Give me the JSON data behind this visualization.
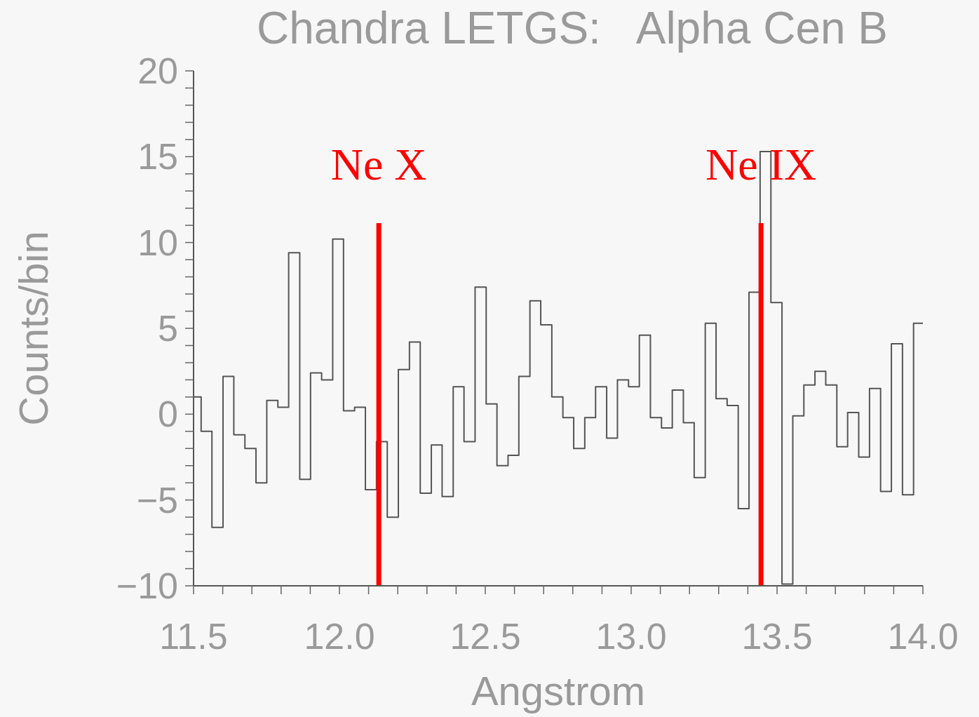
{
  "chart_data": {
    "type": "histogram",
    "title": "Chandra LETGS:   Alpha Cen B",
    "xlabel": "Angstrom",
    "ylabel": "Counts/bin",
    "color": "#555555",
    "bins": [
      11.5,
      11.526,
      11.563,
      11.601,
      11.638,
      11.676,
      11.714,
      11.751,
      11.789,
      11.826,
      11.864,
      11.901,
      11.939,
      11.977,
      12.014,
      12.052,
      12.089,
      12.127,
      12.164,
      12.202,
      12.24,
      12.277,
      12.315,
      12.352,
      12.39,
      12.427,
      12.465,
      12.503,
      12.54,
      12.578,
      12.615,
      12.653,
      12.69,
      12.728,
      12.766,
      12.803,
      12.841,
      12.878,
      12.916,
      12.953,
      12.991,
      13.028,
      13.066,
      13.104,
      13.141,
      13.179,
      13.216,
      13.254,
      13.291,
      13.329,
      13.367,
      13.404,
      13.442,
      13.479,
      13.517,
      13.554,
      13.592,
      13.63,
      13.667,
      13.705,
      13.742,
      13.78,
      13.817,
      13.855,
      13.892,
      13.93,
      13.968,
      14.0
    ],
    "values": [
      1.0,
      -1.0,
      -6.6,
      2.2,
      -1.2,
      -2.0,
      -4.0,
      0.8,
      0.4,
      9.4,
      -3.8,
      2.4,
      2.0,
      10.2,
      0.2,
      0.4,
      -4.4,
      -1.6,
      -6.0,
      2.6,
      4.2,
      -4.6,
      -1.8,
      -4.8,
      1.6,
      -1.6,
      7.4,
      0.6,
      -3.0,
      -2.4,
      2.2,
      6.6,
      5.2,
      1.0,
      -0.2,
      -2.0,
      -0.2,
      1.6,
      -1.4,
      2.0,
      1.6,
      4.6,
      -0.2,
      -0.8,
      1.4,
      -0.5,
      -3.7,
      5.3,
      0.9,
      0.5,
      -5.5,
      7.1,
      15.3,
      6.5,
      -9.9,
      -0.1,
      1.7,
      2.5,
      1.7,
      -1.9,
      0.1,
      -2.5,
      1.5,
      -4.5,
      4.1,
      -4.7,
      5.3
    ],
    "xlim": [
      11.5,
      14.0
    ],
    "xticks": [
      {
        "value": 11.5,
        "label": "11.5"
      },
      {
        "value": 11.6,
        "label": null
      },
      {
        "value": 11.7,
        "label": null
      },
      {
        "value": 11.8,
        "label": null
      },
      {
        "value": 11.9,
        "label": null
      },
      {
        "value": 12.0,
        "label": "12.0"
      },
      {
        "value": 12.1,
        "label": null
      },
      {
        "value": 12.2,
        "label": null
      },
      {
        "value": 12.3,
        "label": null
      },
      {
        "value": 12.4,
        "label": null
      },
      {
        "value": 12.5,
        "label": "12.5"
      },
      {
        "value": 12.6,
        "label": null
      },
      {
        "value": 12.7,
        "label": null
      },
      {
        "value": 12.8,
        "label": null
      },
      {
        "value": 12.9,
        "label": null
      },
      {
        "value": 13.0,
        "label": "13.0"
      },
      {
        "value": 13.1,
        "label": null
      },
      {
        "value": 13.2,
        "label": null
      },
      {
        "value": 13.3,
        "label": null
      },
      {
        "value": 13.4,
        "label": null
      },
      {
        "value": 13.5,
        "label": "13.5"
      },
      {
        "value": 13.6,
        "label": null
      },
      {
        "value": 13.7,
        "label": null
      },
      {
        "value": 13.8,
        "label": null
      },
      {
        "value": 13.9,
        "label": null
      },
      {
        "value": 14.0,
        "label": "14.0"
      }
    ],
    "ylim": [
      -10,
      20
    ],
    "yticks": [
      {
        "value": -10,
        "label": "−10"
      },
      {
        "value": -9,
        "label": null
      },
      {
        "value": -8,
        "label": null
      },
      {
        "value": -7,
        "label": null
      },
      {
        "value": -6,
        "label": null
      },
      {
        "value": -5,
        "label": "−5"
      },
      {
        "value": -4,
        "label": null
      },
      {
        "value": -3,
        "label": null
      },
      {
        "value": -2,
        "label": null
      },
      {
        "value": -1,
        "label": null
      },
      {
        "value": 0,
        "label": "0"
      },
      {
        "value": 1,
        "label": null
      },
      {
        "value": 2,
        "label": null
      },
      {
        "value": 3,
        "label": null
      },
      {
        "value": 4,
        "label": null
      },
      {
        "value": 5,
        "label": "5"
      },
      {
        "value": 6,
        "label": null
      },
      {
        "value": 7,
        "label": null
      },
      {
        "value": 8,
        "label": null
      },
      {
        "value": 9,
        "label": null
      },
      {
        "value": 10,
        "label": "10"
      },
      {
        "value": 11,
        "label": null
      },
      {
        "value": 12,
        "label": null
      },
      {
        "value": 13,
        "label": null
      },
      {
        "value": 14,
        "label": null
      },
      {
        "value": 15,
        "label": "15"
      },
      {
        "value": 16,
        "label": null
      },
      {
        "value": 17,
        "label": null
      },
      {
        "value": 18,
        "label": null
      },
      {
        "value": 19,
        "label": null
      },
      {
        "value": 20,
        "label": "20"
      }
    ],
    "ref_lines": [
      {
        "axis": "x",
        "value": 12.135,
        "label": "Ne X",
        "color": "#ff0000"
      },
      {
        "axis": "x",
        "value": 13.445,
        "label": "Ne IX",
        "color": "#ff0000"
      }
    ]
  }
}
